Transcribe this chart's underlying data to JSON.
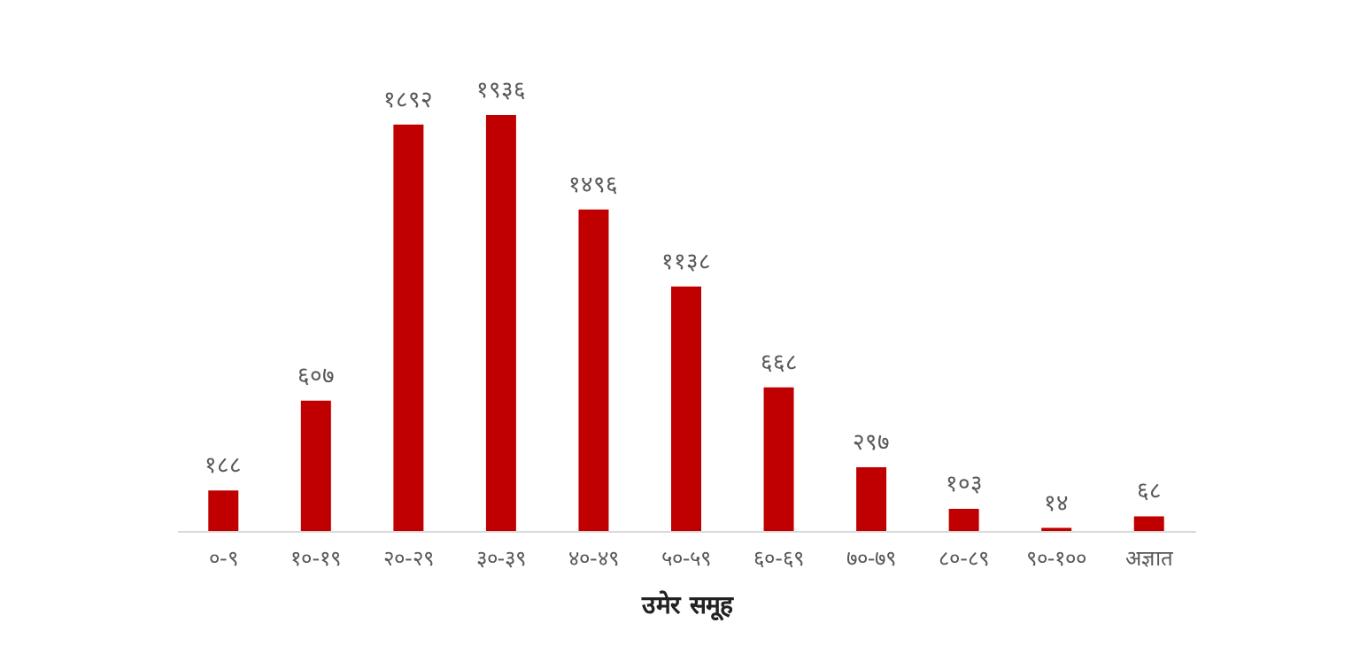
{
  "chart_data": {
    "type": "bar",
    "xlabel": "उमेर समूह",
    "categories": [
      "०-९",
      "१०-१९",
      "२०-२९",
      "३०-३९",
      "४०-४९",
      "५०-५९",
      "६०-६९",
      "७०-७९",
      "८०-८९",
      "९०-१००",
      "अज्ञात"
    ],
    "values": [
      188,
      607,
      1892,
      1936,
      1496,
      1138,
      668,
      297,
      103,
      14,
      68
    ],
    "value_labels": [
      "१८८",
      "६०७",
      "१८९२",
      "१९३६",
      "१४९६",
      "११३८",
      "६६८",
      "२९७",
      "१०३",
      "१४",
      "६८"
    ],
    "color": "#c00000",
    "grid": false
  }
}
